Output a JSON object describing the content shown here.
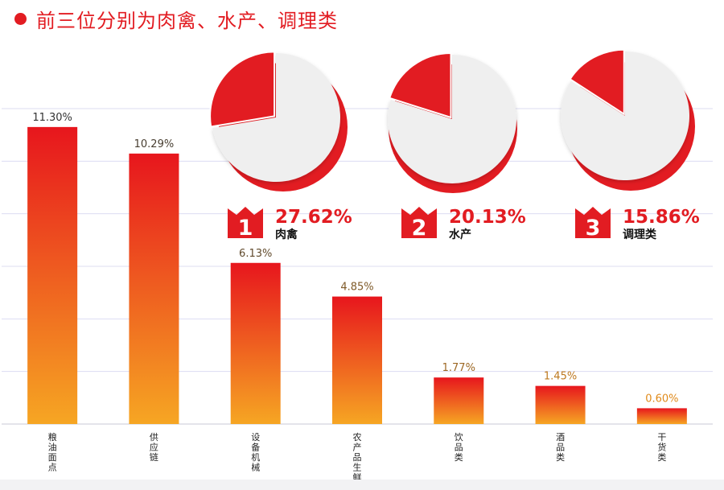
{
  "header": {
    "title": "前三位分别为肉禽、水产、调理类"
  },
  "colors": {
    "accent": "#e21c22",
    "bar_top": "#e7161d",
    "bar_bottom": "#f6a623",
    "pie_rest": "#efefef",
    "grid": "#dcdcf2"
  },
  "chart_data": [
    {
      "type": "bar",
      "title": "",
      "xlabel": "",
      "ylabel": "",
      "categories": [
        "粮油面点",
        "供应链",
        "设备机械",
        "农产品生鲜",
        "饮品类",
        "酒品类",
        "干货类"
      ],
      "values": [
        11.3,
        10.29,
        6.13,
        4.85,
        1.77,
        1.45,
        0.6
      ],
      "value_labels": [
        "11.30%",
        "10.29%",
        "6.13%",
        "4.85%",
        "1.77%",
        "1.45%",
        "0.60%"
      ],
      "unit": "%",
      "ylim": [
        0,
        12
      ],
      "grid": true,
      "legend": "none"
    },
    {
      "type": "pie",
      "title": "",
      "rank": "1",
      "percent_label": "27.62%",
      "category": "肉禽",
      "slices": [
        {
          "label": "肉禽",
          "value": 27.62
        },
        {
          "label": "",
          "value": 72.38
        }
      ]
    },
    {
      "type": "pie",
      "title": "",
      "rank": "2",
      "percent_label": "20.13%",
      "category": "水产",
      "slices": [
        {
          "label": "水产",
          "value": 20.13
        },
        {
          "label": "",
          "value": 79.87
        }
      ]
    },
    {
      "type": "pie",
      "title": "",
      "rank": "3",
      "percent_label": "15.86%",
      "category": "调理类",
      "slices": [
        {
          "label": "调理类",
          "value": 15.86
        },
        {
          "label": "",
          "value": 84.14
        }
      ]
    }
  ]
}
